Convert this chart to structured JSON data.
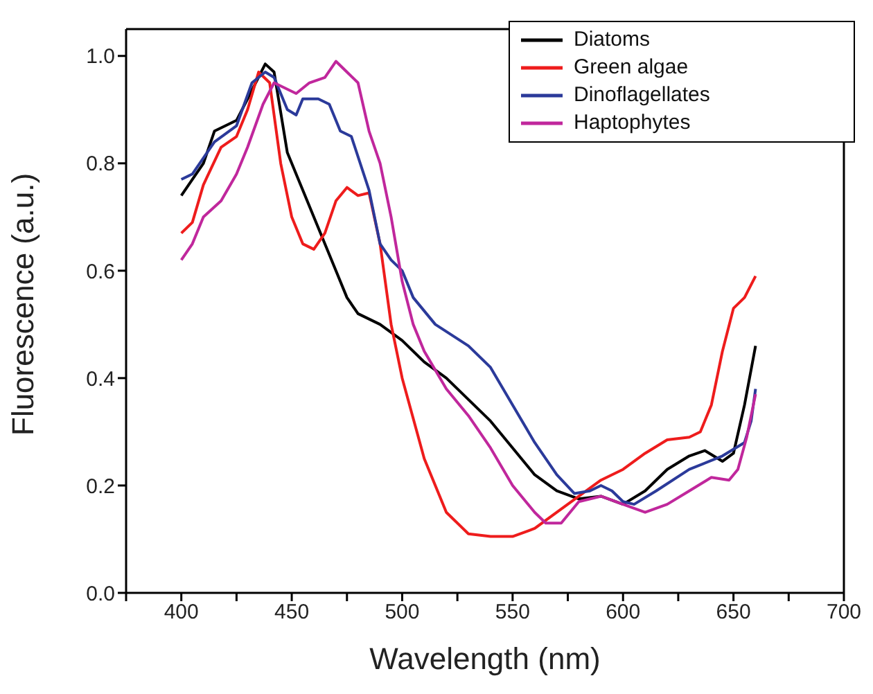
{
  "chart_data": {
    "type": "line",
    "xlabel": "Wavelength (nm)",
    "ylabel": "Fluorescence (a.u.)",
    "xlim": [
      375,
      700
    ],
    "xticks": [
      {
        "value": 375,
        "label": null
      },
      400,
      {
        "value": 425,
        "label": null
      },
      450,
      {
        "value": 475,
        "label": null
      },
      500,
      {
        "value": 525,
        "label": null
      },
      550,
      {
        "value": 575,
        "label": null
      },
      600,
      {
        "value": 625,
        "label": null
      },
      650,
      {
        "value": 675,
        "label": null
      },
      700
    ],
    "ylim": [
      0,
      1.05
    ],
    "yticks": [
      {
        "value": 0,
        "label": "0.0"
      },
      {
        "value": 0.2,
        "label": "0.2"
      },
      {
        "value": 0.4,
        "label": "0.4"
      },
      {
        "value": 0.6,
        "label": "0.6"
      },
      {
        "value": 0.8,
        "label": "0.8"
      },
      {
        "value": 1,
        "label": "1.0"
      }
    ],
    "grid": false,
    "legend": "top right",
    "marker": "none",
    "line_style": "solid",
    "series": [
      {
        "name": "Diatoms",
        "color": "#000000",
        "x": [
          400,
          410,
          415,
          425,
          430,
          438,
          442,
          448,
          455,
          460,
          465,
          470,
          475,
          480,
          490,
          500,
          510,
          520,
          530,
          540,
          550,
          560,
          570,
          580,
          590,
          600,
          610,
          620,
          630,
          637,
          645,
          650,
          655,
          660
        ],
        "values": [
          0.74,
          0.8,
          0.86,
          0.88,
          0.92,
          0.985,
          0.97,
          0.82,
          0.75,
          0.7,
          0.65,
          0.6,
          0.55,
          0.52,
          0.5,
          0.47,
          0.43,
          0.4,
          0.36,
          0.32,
          0.27,
          0.22,
          0.19,
          0.175,
          0.18,
          0.165,
          0.19,
          0.23,
          0.255,
          0.265,
          0.245,
          0.26,
          0.35,
          0.46
        ]
      },
      {
        "name": "Green algae",
        "color": "#ee1c1c",
        "x": [
          400,
          405,
          410,
          418,
          425,
          430,
          435,
          440,
          445,
          450,
          455,
          460,
          465,
          470,
          475,
          480,
          485,
          490,
          495,
          500,
          510,
          520,
          530,
          540,
          550,
          560,
          570,
          580,
          590,
          600,
          610,
          620,
          630,
          635,
          640,
          645,
          650,
          655,
          660
        ],
        "values": [
          0.67,
          0.69,
          0.76,
          0.83,
          0.85,
          0.9,
          0.97,
          0.95,
          0.8,
          0.7,
          0.65,
          0.64,
          0.67,
          0.73,
          0.755,
          0.74,
          0.745,
          0.65,
          0.5,
          0.4,
          0.25,
          0.15,
          0.11,
          0.105,
          0.105,
          0.12,
          0.15,
          0.18,
          0.21,
          0.23,
          0.26,
          0.285,
          0.29,
          0.3,
          0.35,
          0.45,
          0.53,
          0.55,
          0.59
        ]
      },
      {
        "name": "Dinoflagellates",
        "color": "#2b3a9a",
        "x": [
          400,
          405,
          415,
          425,
          432,
          438,
          442,
          448,
          452,
          455,
          462,
          467,
          472,
          477,
          485,
          490,
          495,
          500,
          505,
          515,
          530,
          540,
          550,
          560,
          570,
          578,
          585,
          590,
          595,
          600,
          605,
          615,
          630,
          645,
          655,
          658,
          660
        ],
        "values": [
          0.77,
          0.78,
          0.84,
          0.87,
          0.95,
          0.97,
          0.96,
          0.9,
          0.89,
          0.92,
          0.92,
          0.91,
          0.86,
          0.85,
          0.75,
          0.65,
          0.62,
          0.6,
          0.55,
          0.5,
          0.46,
          0.42,
          0.35,
          0.28,
          0.22,
          0.185,
          0.19,
          0.2,
          0.19,
          0.17,
          0.165,
          0.19,
          0.23,
          0.255,
          0.28,
          0.32,
          0.38
        ]
      },
      {
        "name": "Haptophytes",
        "color": "#c0279c",
        "x": [
          400,
          405,
          410,
          418,
          425,
          430,
          437,
          442,
          447,
          452,
          458,
          465,
          470,
          475,
          480,
          485,
          490,
          495,
          500,
          505,
          510,
          520,
          530,
          540,
          550,
          560,
          565,
          572,
          580,
          590,
          600,
          610,
          620,
          630,
          640,
          648,
          652,
          656,
          660
        ],
        "values": [
          0.62,
          0.65,
          0.7,
          0.73,
          0.78,
          0.83,
          0.91,
          0.95,
          0.94,
          0.93,
          0.95,
          0.96,
          0.99,
          0.97,
          0.95,
          0.86,
          0.8,
          0.7,
          0.58,
          0.5,
          0.45,
          0.38,
          0.33,
          0.27,
          0.2,
          0.15,
          0.13,
          0.13,
          0.17,
          0.18,
          0.165,
          0.15,
          0.165,
          0.19,
          0.215,
          0.21,
          0.23,
          0.29,
          0.37
        ]
      }
    ]
  }
}
